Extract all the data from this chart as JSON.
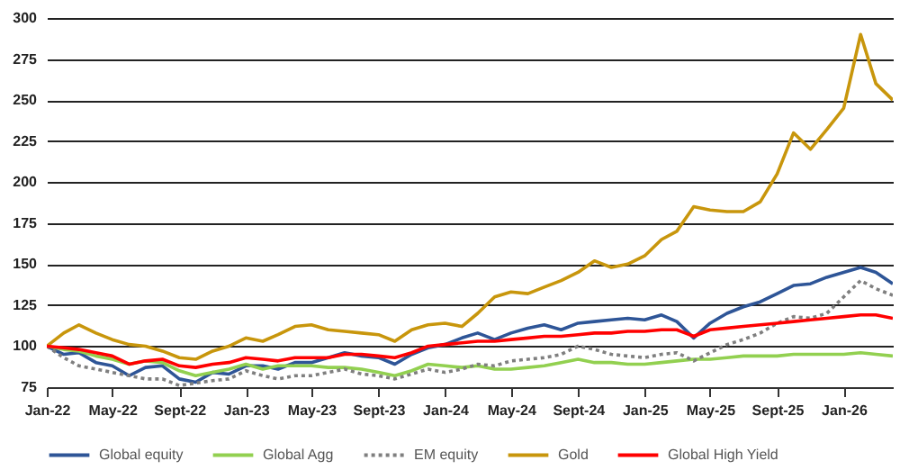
{
  "chart_data": {
    "type": "line",
    "x": [
      "2022-01",
      "2022-02",
      "2022-03",
      "2022-04",
      "2022-05",
      "2022-06",
      "2022-07",
      "2022-08",
      "2022-09",
      "2022-10",
      "2022-11",
      "2022-12",
      "2023-01",
      "2023-02",
      "2023-03",
      "2023-04",
      "2023-05",
      "2023-06",
      "2023-07",
      "2023-08",
      "2023-09",
      "2023-10",
      "2023-11",
      "2023-12",
      "2024-01",
      "2024-02",
      "2024-03",
      "2024-04",
      "2024-05",
      "2024-06",
      "2024-07",
      "2024-08",
      "2024-09",
      "2024-10",
      "2024-11",
      "2024-12",
      "2025-01",
      "2025-02",
      "2025-03",
      "2025-04",
      "2025-05",
      "2025-06",
      "2025-07",
      "2025-08",
      "2025-09",
      "2025-10",
      "2025-11",
      "2025-12",
      "2026-01",
      "2026-02",
      "2026-03",
      "2026-04"
    ],
    "series": [
      {
        "name": "Global equity",
        "color": "#2e5597",
        "line_style": "solid",
        "values": [
          100,
          95,
          96,
          90,
          88,
          82,
          87,
          88,
          80,
          78,
          84,
          83,
          88,
          88,
          86,
          90,
          90,
          93,
          96,
          94,
          93,
          89,
          95,
          99,
          101,
          105,
          108,
          104,
          108,
          111,
          113,
          110,
          114,
          115,
          116,
          117,
          116,
          119,
          115,
          105,
          114,
          120,
          124,
          127,
          132,
          137,
          138,
          142,
          145,
          148,
          145,
          138
        ]
      },
      {
        "name": "Global Agg",
        "color": "#92d050",
        "line_style": "solid",
        "values": [
          100,
          98,
          97,
          94,
          92,
          89,
          91,
          90,
          85,
          82,
          84,
          86,
          89,
          86,
          88,
          88,
          88,
          87,
          87,
          86,
          84,
          82,
          85,
          89,
          88,
          87,
          88,
          86,
          86,
          87,
          88,
          90,
          92,
          90,
          90,
          89,
          89,
          90,
          91,
          92,
          92,
          93,
          94,
          94,
          94,
          95,
          95,
          95,
          95,
          96,
          95,
          94
        ]
      },
      {
        "name": "EM equity",
        "color": "#7f7f7f",
        "line_style": "dotted",
        "values": [
          100,
          93,
          88,
          86,
          84,
          82,
          80,
          80,
          76,
          null,
          79,
          80,
          85,
          82,
          80,
          82,
          82,
          84,
          86,
          83,
          82,
          80,
          83,
          86,
          84,
          86,
          89,
          88,
          91,
          92,
          93,
          95,
          100,
          98,
          95,
          94,
          93,
          95,
          96,
          91,
          96,
          101,
          104,
          108,
          114,
          118,
          117,
          120,
          130,
          140,
          135,
          131
        ]
      },
      {
        "name": "Gold",
        "color": "#c8960c",
        "line_style": "solid",
        "values": [
          100,
          108,
          113,
          108,
          104,
          101,
          100,
          97,
          93,
          92,
          97,
          100,
          105,
          103,
          107,
          112,
          113,
          110,
          109,
          108,
          107,
          103,
          110,
          113,
          114,
          112,
          120,
          130,
          133,
          132,
          136,
          140,
          145,
          152,
          148,
          150,
          155,
          165,
          170,
          185,
          183,
          182,
          182,
          188,
          205,
          230,
          220,
          232,
          245,
          290,
          260,
          250
        ]
      },
      {
        "name": "Global High Yield",
        "color": "#ff0000",
        "line_style": "solid",
        "values": [
          100,
          99,
          98,
          96,
          94,
          89,
          91,
          92,
          88,
          87,
          89,
          90,
          93,
          92,
          91,
          93,
          93,
          93,
          95,
          95,
          94,
          93,
          96,
          100,
          101,
          102,
          103,
          103,
          104,
          105,
          106,
          106,
          107,
          108,
          108,
          109,
          109,
          110,
          110,
          106,
          110,
          111,
          112,
          113,
          114,
          115,
          116,
          117,
          118,
          119,
          119,
          117
        ]
      }
    ],
    "xlim": [
      "2022-01",
      "2026-04"
    ],
    "xticks": [
      {
        "value": "2022-01",
        "label": "Jan-22"
      },
      {
        "value": "2022-05",
        "label": "May-22"
      },
      {
        "value": "2022-09",
        "label": "Sept-22"
      },
      {
        "value": "2023-01",
        "label": "Jan-23"
      },
      {
        "value": "2023-05",
        "label": "May-23"
      },
      {
        "value": "2023-09",
        "label": "Sept-23"
      },
      {
        "value": "2024-01",
        "label": "Jan-24"
      },
      {
        "value": "2024-05",
        "label": "May-24"
      },
      {
        "value": "2024-09",
        "label": "Sept-24"
      },
      {
        "value": "2025-01",
        "label": "Jan-25"
      },
      {
        "value": "2025-05",
        "label": "May-25"
      },
      {
        "value": "2025-09",
        "label": "Sept-25"
      },
      {
        "value": "2026-01",
        "label": "Jan-26"
      }
    ],
    "ylim": [
      75,
      300
    ],
    "yticks": [
      75,
      100,
      125,
      150,
      175,
      200,
      225,
      250,
      275,
      300
    ],
    "grid": "y",
    "legend": "bottom"
  }
}
